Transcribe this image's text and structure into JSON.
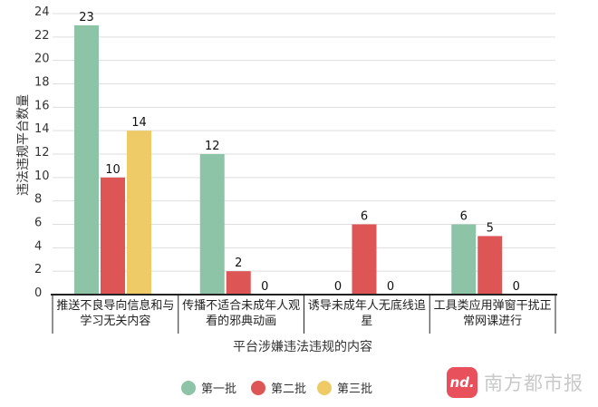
{
  "chart_data": {
    "type": "bar",
    "categories": [
      [
        "推送不良导向信息和与",
        "学习无关内容"
      ],
      [
        "传播不适合未成年人观",
        "看的邪典动画"
      ],
      [
        "诱导未成年人无底线追",
        "星"
      ],
      [
        "工具类应用弹窗干扰正",
        "常网课进行"
      ]
    ],
    "series": [
      {
        "name": "第一批",
        "color": "#8dc3a7",
        "values": [
          23,
          12,
          0,
          6
        ]
      },
      {
        "name": "第二批",
        "color": "#dd5555",
        "values": [
          10,
          2,
          6,
          5
        ]
      },
      {
        "name": "第三批",
        "color": "#eecb67",
        "values": [
          14,
          0,
          0,
          0
        ]
      }
    ],
    "xlabel": "平台涉嫌违法违规的内容",
    "ylabel": "违法违规平台数量",
    "ylim": [
      0,
      24
    ],
    "yticks": [
      0,
      2,
      4,
      6,
      8,
      10,
      12,
      14,
      16,
      18,
      20,
      22,
      24
    ],
    "grid": true,
    "legend": "bottom",
    "data_labels": true
  },
  "watermark": {
    "logo_text": "nd.",
    "text": "南方都市报"
  }
}
